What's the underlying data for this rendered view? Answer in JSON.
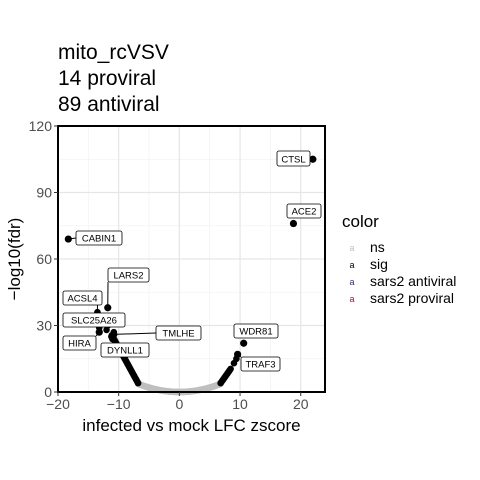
{
  "chart_data": {
    "type": "scatter",
    "title_lines": [
      "mito_rcVSV",
      "14 proviral",
      "89 antiviral"
    ],
    "xlabel": "infected vs mock LFC zscore",
    "ylabel": "−log10(fdr)",
    "xlim": [
      -20,
      24
    ],
    "ylim": [
      0,
      120
    ],
    "x_ticks": [
      -20,
      -10,
      0,
      10,
      20
    ],
    "x_tick_labels": [
      "−20",
      "−10",
      "0",
      "10",
      "20"
    ],
    "y_ticks": [
      0,
      30,
      60,
      90,
      120
    ],
    "grid": true,
    "legend": {
      "title": "color",
      "position": "right",
      "items": [
        {
          "label": "ns",
          "color": "#bfbfbf"
        },
        {
          "label": "sig",
          "color": "#000000"
        },
        {
          "label": "sars2 antiviral",
          "color": "#2b2d8a"
        },
        {
          "label": "sars2 proviral",
          "color": "#8b1a3a"
        }
      ]
    },
    "labeled_points": [
      {
        "gene": "CTSL",
        "x": 22.0,
        "y": 105.0
      },
      {
        "gene": "ACE2",
        "x": 18.8,
        "y": 76.0
      },
      {
        "gene": "CABIN1",
        "x": -18.3,
        "y": 69.0
      },
      {
        "gene": "LARS2",
        "x": -11.8,
        "y": 38.0
      },
      {
        "gene": "ACSL4",
        "x": -13.5,
        "y": 35.0
      },
      {
        "gene": "SLC25A26",
        "x": -12.2,
        "y": 31.0
      },
      {
        "gene": "HIRA",
        "x": -13.2,
        "y": 27.0
      },
      {
        "gene": "TMLHE",
        "x": -10.8,
        "y": 26.0
      },
      {
        "gene": "DYNLL1",
        "x": -11.0,
        "y": 24.0
      },
      {
        "gene": "WDR81",
        "x": 10.6,
        "y": 22.0
      },
      {
        "gene": "TRAF3",
        "x": 9.6,
        "y": 17.0
      }
    ]
  }
}
